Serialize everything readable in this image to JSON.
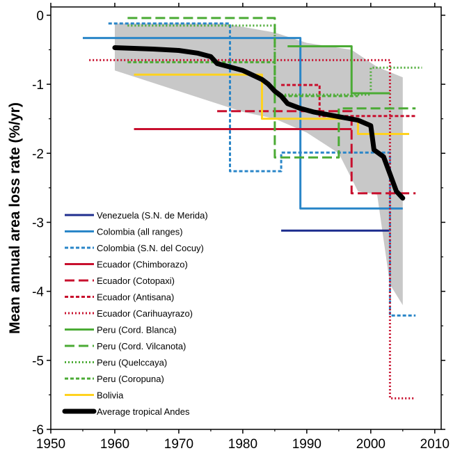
{
  "chart_data": {
    "type": "line",
    "title": "",
    "xlabel": "",
    "ylabel": "Mean annual area loss rate (%/yr)",
    "xlim": [
      1950,
      2011
    ],
    "ylim": [
      -6,
      0.12
    ],
    "xticks": [
      1950,
      1960,
      1970,
      1980,
      1990,
      2000,
      2010
    ],
    "yticks": [
      0,
      -1,
      -2,
      -3,
      -4,
      -5,
      -6
    ],
    "legend_position": "bottom-left",
    "grid": false,
    "band": {
      "color": "#c8c8c8",
      "upper": [
        [
          1960,
          -0.12
        ],
        [
          1977,
          -0.12
        ],
        [
          1985,
          -0.25
        ],
        [
          1990,
          -0.4
        ],
        [
          1997,
          -0.5
        ],
        [
          2001,
          -0.75
        ],
        [
          2005,
          -0.9
        ]
      ],
      "lower": [
        [
          2005,
          -4.2
        ],
        [
          2004,
          -4.05
        ],
        [
          2003,
          -3.9
        ],
        [
          2001,
          -2.6
        ],
        [
          1998,
          -2.55
        ],
        [
          1995,
          -2.0
        ],
        [
          1990,
          -1.7
        ],
        [
          1985,
          -1.5
        ],
        [
          1980,
          -1.4
        ],
        [
          1970,
          -1.1
        ],
        [
          1960,
          -0.8
        ]
      ]
    },
    "series": [
      {
        "name": "Venezuela (S.N. de Merida)",
        "color": "#1f2f8f",
        "dash": "solid",
        "points": [
          [
            1986,
            -3.12
          ],
          [
            2003,
            -3.12
          ]
        ]
      },
      {
        "name": "Colombia (all ranges)",
        "color": "#2a86c8",
        "dash": "solid",
        "points": [
          [
            1955,
            -0.33
          ],
          [
            1989,
            -0.33
          ],
          [
            1989,
            -2.8
          ],
          [
            2005,
            -2.8
          ]
        ]
      },
      {
        "name": "Colombia (S.N. del Cocuy)",
        "color": "#2a86c8",
        "dash": "short",
        "points": [
          [
            1959,
            -0.12
          ],
          [
            1978,
            -0.12
          ],
          [
            1978,
            -2.26
          ],
          [
            1986,
            -2.26
          ],
          [
            1986,
            -1.99
          ],
          [
            2003,
            -1.99
          ],
          [
            2003,
            -4.35
          ],
          [
            2007,
            -4.35
          ]
        ]
      },
      {
        "name": "Ecuador (Chimborazo)",
        "color": "#c8102e",
        "dash": "solid",
        "points": [
          [
            1963,
            -1.65
          ],
          [
            1997,
            -1.65
          ]
        ]
      },
      {
        "name": "Ecuador (Cotopaxi)",
        "color": "#c8102e",
        "dash": "long",
        "points": [
          [
            1976,
            -1.39
          ],
          [
            1997,
            -1.39
          ],
          [
            1997,
            -2.58
          ],
          [
            2007,
            -2.58
          ]
        ]
      },
      {
        "name": "Ecuador (Antisana)",
        "color": "#c8102e",
        "dash": "short",
        "points": [
          [
            1986,
            -1.01
          ],
          [
            1992,
            -1.01
          ],
          [
            1992,
            -1.46
          ],
          [
            2007,
            -1.46
          ]
        ]
      },
      {
        "name": "Ecuador (Carihuayrazo)",
        "color": "#c8102e",
        "dash": "dot",
        "points": [
          [
            1956,
            -0.65
          ],
          [
            2003,
            -0.65
          ],
          [
            2003,
            -5.55
          ],
          [
            2007,
            -5.55
          ]
        ]
      },
      {
        "name": "Peru (Cord. Blanca)",
        "color": "#4bab35",
        "dash": "solid",
        "points": [
          [
            1987,
            -0.45
          ],
          [
            1997,
            -0.45
          ],
          [
            1997,
            -1.13
          ],
          [
            2003,
            -1.13
          ]
        ]
      },
      {
        "name": "Peru (Cord. Vilcanota)",
        "color": "#4bab35",
        "dash": "long",
        "points": [
          [
            1962,
            -0.04
          ],
          [
            1985,
            -0.04
          ],
          [
            1985,
            -2.06
          ],
          [
            1995,
            -2.06
          ],
          [
            1995,
            -1.35
          ],
          [
            2007,
            -1.35
          ]
        ]
      },
      {
        "name": "Peru (Quelccaya)",
        "color": "#4bab35",
        "dash": "dot",
        "points": [
          [
            1962,
            -0.15
          ],
          [
            1985,
            -0.15
          ],
          [
            1985,
            -1.15
          ],
          [
            2000,
            -1.15
          ],
          [
            2000,
            -0.76
          ],
          [
            2008,
            -0.76
          ]
        ]
      },
      {
        "name": "Peru (Coropuna)",
        "color": "#4bab35",
        "dash": "short",
        "points": [
          [
            1962,
            -0.68
          ],
          [
            1985,
            -0.68
          ],
          [
            1985,
            -1.17
          ],
          [
            1998,
            -1.17
          ]
        ]
      },
      {
        "name": "Bolivia",
        "color": "#ffd21f",
        "dash": "solid",
        "points": [
          [
            1963,
            -0.86
          ],
          [
            1983,
            -0.86
          ],
          [
            1983,
            -1.5
          ],
          [
            1998,
            -1.5
          ],
          [
            1998,
            -1.72
          ],
          [
            2006,
            -1.72
          ]
        ]
      },
      {
        "name": "Average tropical Andes",
        "color": "#000000",
        "dash": "thick",
        "points": [
          [
            1960,
            -0.47
          ],
          [
            1966,
            -0.49
          ],
          [
            1970,
            -0.51
          ],
          [
            1973,
            -0.55
          ],
          [
            1975,
            -0.6
          ],
          [
            1976,
            -0.7
          ],
          [
            1978,
            -0.75
          ],
          [
            1980,
            -0.8
          ],
          [
            1983,
            -0.93
          ],
          [
            1984,
            -1.0
          ],
          [
            1985,
            -1.1
          ],
          [
            1986,
            -1.17
          ],
          [
            1987,
            -1.28
          ],
          [
            1989,
            -1.35
          ],
          [
            1991,
            -1.4
          ],
          [
            1995,
            -1.47
          ],
          [
            1998,
            -1.52
          ],
          [
            2000,
            -1.6
          ],
          [
            2000.5,
            -1.95
          ],
          [
            2002,
            -2.05
          ],
          [
            2003,
            -2.3
          ],
          [
            2004,
            -2.55
          ],
          [
            2005,
            -2.65
          ]
        ]
      }
    ]
  }
}
